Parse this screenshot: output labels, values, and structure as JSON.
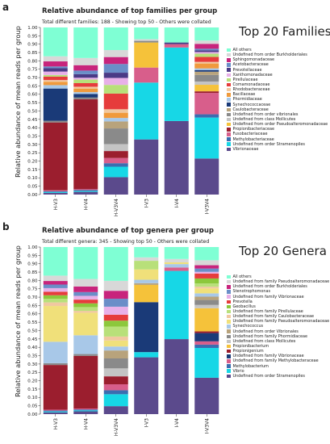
{
  "chart_data": [
    {
      "panel": "a",
      "type": "bar",
      "stacked": true,
      "title": "Relative abundance of top families per group",
      "subtitle": "Total different families: 188 - Showing top 50 - Others were collated",
      "side_title": "Top 20 Families",
      "ylabel": "Relative abundance of mean reads per group",
      "ylim": [
        0,
        1
      ],
      "yticks": [
        "0.00",
        "0.05",
        "0.10",
        "0.15",
        "0.20",
        "0.25",
        "0.30",
        "0.35",
        "0.40",
        "0.45",
        "0.50",
        "0.55",
        "0.60",
        "0.65",
        "0.70",
        "0.75",
        "0.80",
        "0.85",
        "0.90",
        "0.95",
        "1.00"
      ],
      "categories": [
        "H-V3",
        "H-V4",
        "H-V3V4",
        "I-V3",
        "I-V4",
        "I-V3V4"
      ],
      "legend_position": "right",
      "series": [
        {
          "name": "Vibrionaceae",
          "color": "#5b4a8c",
          "values": [
            0.01,
            0.015,
            0.1,
            0.33,
            0.44,
            0.22
          ]
        },
        {
          "name": "Undefined from order Stramenopiles",
          "color": "#17d7e6",
          "values": [
            0.005,
            0.005,
            0.06,
            0.34,
            0.44,
            0.25
          ]
        },
        {
          "name": "Methylobacteriaceae",
          "color": "#3b6db0",
          "values": [
            0.005,
            0.005,
            0.02,
            0.0,
            0.0,
            0.02
          ]
        },
        {
          "name": "Fusobacteriaceae",
          "color": "#d85e8b",
          "values": [
            0.005,
            0.005,
            0.03,
            0.09,
            0.02,
            0.13
          ]
        },
        {
          "name": "Propionibacteriaceae",
          "color": "#9b1e2e",
          "values": [
            0.4,
            0.5,
            0.04,
            0.0,
            0.0,
            0.01
          ]
        },
        {
          "name": "Undefined from order Pseudoalteromonadaceae",
          "color": "#f5c23a",
          "values": [
            0.0,
            0.0,
            0.0,
            0.15,
            0.0,
            0.04
          ]
        },
        {
          "name": "Undefined from class Mollicutes",
          "color": "#c4c4c4",
          "values": [
            0.0,
            0.0,
            0.04,
            0.0,
            0.0,
            0.02
          ]
        },
        {
          "name": "Undefined from order vibrionales",
          "color": "#8a8a8a",
          "values": [
            0.01,
            0.01,
            0.09,
            0.01,
            0.0,
            0.04
          ]
        },
        {
          "name": "Caulobacteraceae",
          "color": "#b8a37c",
          "values": [
            0.0,
            0.0,
            0.04,
            0.0,
            0.0,
            0.02
          ]
        },
        {
          "name": "Synechococcaceae",
          "color": "#1a3a78",
          "values": [
            0.19,
            0.02,
            0.0,
            0.0,
            0.0,
            0.01
          ]
        },
        {
          "name": "Phormidiaceae",
          "color": "#a8c8e8",
          "values": [
            0.02,
            0.01,
            0.02,
            0.0,
            0.0,
            0.01
          ]
        },
        {
          "name": "Bacillaceae",
          "color": "#f09a3c",
          "values": [
            0.02,
            0.02,
            0.03,
            0.0,
            0.0,
            0.03
          ]
        },
        {
          "name": "Rhodobacteraceae",
          "color": "#f0c8a0",
          "values": [
            0.01,
            0.01,
            0.02,
            0.0,
            0.0,
            0.01
          ]
        },
        {
          "name": "Comamonadaceae",
          "color": "#e63c3c",
          "values": [
            0.02,
            0.02,
            0.09,
            0.0,
            0.0,
            0.03
          ]
        },
        {
          "name": "Pirellulaceae",
          "color": "#b8e07a",
          "values": [
            0.01,
            0.02,
            0.05,
            0.0,
            0.0,
            0.02
          ]
        },
        {
          "name": "Xanthomonadaceae",
          "color": "#e8b0e8",
          "values": [
            0.02,
            0.01,
            0.04,
            0.0,
            0.0,
            0.01
          ]
        },
        {
          "name": "Prevotellaceae",
          "color": "#4a3a86",
          "values": [
            0.02,
            0.02,
            0.03,
            0.0,
            0.01,
            0.01
          ]
        },
        {
          "name": "Acetobacteraceae",
          "color": "#6a8ec8",
          "values": [
            0.01,
            0.02,
            0.05,
            0.0,
            0.0,
            0.01
          ]
        },
        {
          "name": "Sphingomonadaceae",
          "color": "#c8247c",
          "values": [
            0.03,
            0.03,
            0.04,
            0.0,
            0.0,
            0.03
          ]
        },
        {
          "name": "Undefined from order Burkholderiales",
          "color": "#d8d8d8",
          "values": [
            0.03,
            0.04,
            0.04,
            0.01,
            0.0,
            0.02
          ]
        },
        {
          "name": "All others",
          "color": "#7fffd4",
          "values": [
            0.17,
            0.17,
            0.13,
            0.07,
            0.09,
            0.08
          ]
        }
      ]
    },
    {
      "panel": "b",
      "type": "bar",
      "stacked": true,
      "title": "Relative abundance of top genera per group",
      "subtitle": "Total different genera: 345 - Showing top 50 - Others were collated",
      "side_title": "Top 20 Genera",
      "ylabel": "Relative abundance of mean reads per group",
      "ylim": [
        0,
        1
      ],
      "yticks": [
        "0.00",
        "0.05",
        "0.10",
        "0.15",
        "0.20",
        "0.25",
        "0.30",
        "0.35",
        "0.40",
        "0.45",
        "0.50",
        "0.55",
        "0.60",
        "0.65",
        "0.70",
        "0.75",
        "0.80",
        "0.85",
        "0.90",
        "0.95",
        "1.00"
      ],
      "categories": [
        "H-V3",
        "H-V4",
        "H-V3V4",
        "I-V3",
        "I-V4",
        "I-V3V4"
      ],
      "legend_position": "right",
      "series": [
        {
          "name": "Undefined from order Stramenopiles",
          "color": "#5b4a8c",
          "values": [
            0.01,
            0.015,
            0.04,
            0.33,
            0.44,
            0.22
          ]
        },
        {
          "name": "Vibrio",
          "color": "#17d7e6",
          "values": [
            0.005,
            0.005,
            0.06,
            0.03,
            0.4,
            0.18
          ]
        },
        {
          "name": "Methylobacterium",
          "color": "#3b6db0",
          "values": [
            0.005,
            0.005,
            0.02,
            0.0,
            0.0,
            0.02
          ]
        },
        {
          "name": "Undefined from family Methylobacteraceae",
          "color": "#d85e8b",
          "values": [
            0.005,
            0.005,
            0.03,
            0.0,
            0.02,
            0.02
          ]
        },
        {
          "name": "Undefined from family Vibrionaceae",
          "color": "#1a3a78",
          "values": [
            0.0,
            0.0,
            0.0,
            0.29,
            0.0,
            0.05
          ]
        },
        {
          "name": "Propionigenium",
          "color": "#9b1e2e",
          "values": [
            0.25,
            0.28,
            0.04,
            0.0,
            0.0,
            0.01
          ]
        },
        {
          "name": "Propionibacterium",
          "color": "#f5c23a",
          "values": [
            0.0,
            0.0,
            0.0,
            0.1,
            0.0,
            0.14
          ]
        },
        {
          "name": "Undefined from class Mollicutes",
          "color": "#c4c4c4",
          "values": [
            0.0,
            0.0,
            0.04,
            0.0,
            0.0,
            0.02
          ]
        },
        {
          "name": "Undefined from family Phormidiaceae",
          "color": "#8a8a8a",
          "values": [
            0.01,
            0.01,
            0.05,
            0.0,
            0.0,
            0.03
          ]
        },
        {
          "name": "Undefined from order Vibrionales",
          "color": "#b8a37c",
          "values": [
            0.0,
            0.0,
            0.04,
            0.01,
            0.0,
            0.02
          ]
        },
        {
          "name": "Synechococcus",
          "color": "#a8c8e8",
          "values": [
            0.12,
            0.1,
            0.02,
            0.02,
            0.02,
            0.02
          ]
        },
        {
          "name": "Undefined from family Pseudoalteromonadaceae",
          "color": "#f0e07a",
          "values": [
            0.2,
            0.12,
            0.03,
            0.06,
            0.01,
            0.03
          ]
        },
        {
          "name": "Undefined from family Caulobacteraceae",
          "color": "#f0c8a0",
          "values": [
            0.02,
            0.01,
            0.02,
            0.0,
            0.0,
            0.01
          ]
        },
        {
          "name": "Undefined from family Pirellulaceae",
          "color": "#b8e07a",
          "values": [
            0.02,
            0.02,
            0.05,
            0.05,
            0.0,
            0.02
          ]
        },
        {
          "name": "Geobacillus",
          "color": "#8cc83c",
          "values": [
            0.02,
            0.02,
            0.03,
            0.0,
            0.0,
            0.03
          ]
        },
        {
          "name": "Prevotella",
          "color": "#e63c3c",
          "values": [
            0.02,
            0.02,
            0.03,
            0.0,
            0.0,
            0.03
          ]
        },
        {
          "name": "Undefined from family Vibrionaceae",
          "color": "#e8b0e8",
          "values": [
            0.02,
            0.02,
            0.04,
            0.0,
            0.0,
            0.01
          ]
        },
        {
          "name": "Stenotrophomonas",
          "color": "#6a8ec8",
          "values": [
            0.02,
            0.02,
            0.04,
            0.0,
            0.0,
            0.02
          ]
        },
        {
          "name": "Undefined from order Burkholderiales",
          "color": "#c8247c",
          "values": [
            0.02,
            0.03,
            0.04,
            0.0,
            0.0,
            0.02
          ]
        },
        {
          "name": "Undefined from family Pseudoalteromonadaceae",
          "color": "#d8d8d8",
          "values": [
            0.03,
            0.04,
            0.05,
            0.02,
            0.02,
            0.03
          ]
        },
        {
          "name": "All others",
          "color": "#7fffd4",
          "values": [
            0.16,
            0.17,
            0.17,
            0.06,
            0.07,
            0.08
          ]
        }
      ]
    }
  ]
}
